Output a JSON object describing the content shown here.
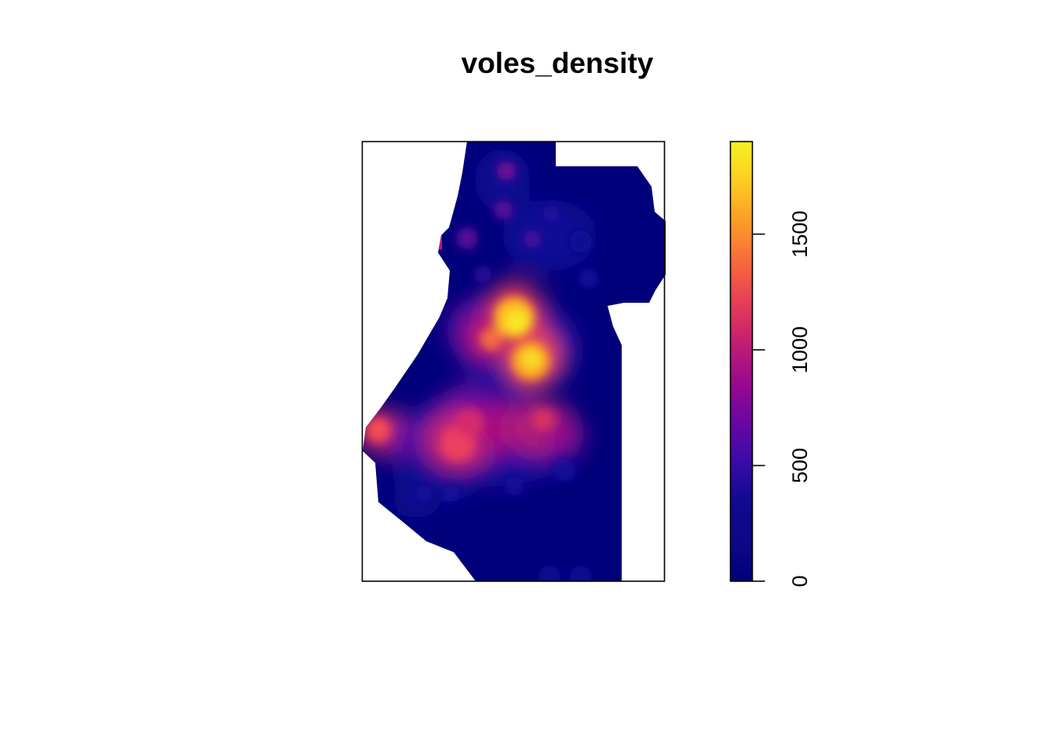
{
  "chart_data": {
    "type": "heatmap",
    "title": "voles_density",
    "xlabel": "",
    "ylabel": "",
    "legend": {
      "placement": "right",
      "range": [
        0,
        1900
      ],
      "ticks": [
        0,
        500,
        1000,
        1500
      ],
      "tick_labels": [
        "0",
        "500",
        "1000",
        "1500"
      ],
      "palette": [
        "#0d0887",
        "#0f0a8f",
        "#3a0ba8",
        "#6a07a3",
        "#9b0a8c",
        "#c41f70",
        "#e73f56",
        "#f86a3c",
        "#fd9b26",
        "#fdcc22",
        "#f5f224"
      ],
      "palette_low": "#00007a"
    },
    "hotspots": [
      {
        "location": "central-upper",
        "value": 1850
      },
      {
        "location": "central",
        "value": 1750
      },
      {
        "location": "central-left",
        "value": 1300
      },
      {
        "location": "left-edge",
        "value": 1100
      },
      {
        "location": "lower-center-left",
        "value": 1150
      },
      {
        "location": "lower-center",
        "value": 950
      },
      {
        "location": "lower-center-right",
        "value": 950
      },
      {
        "location": "upper-left-edge",
        "value": 800
      }
    ]
  }
}
